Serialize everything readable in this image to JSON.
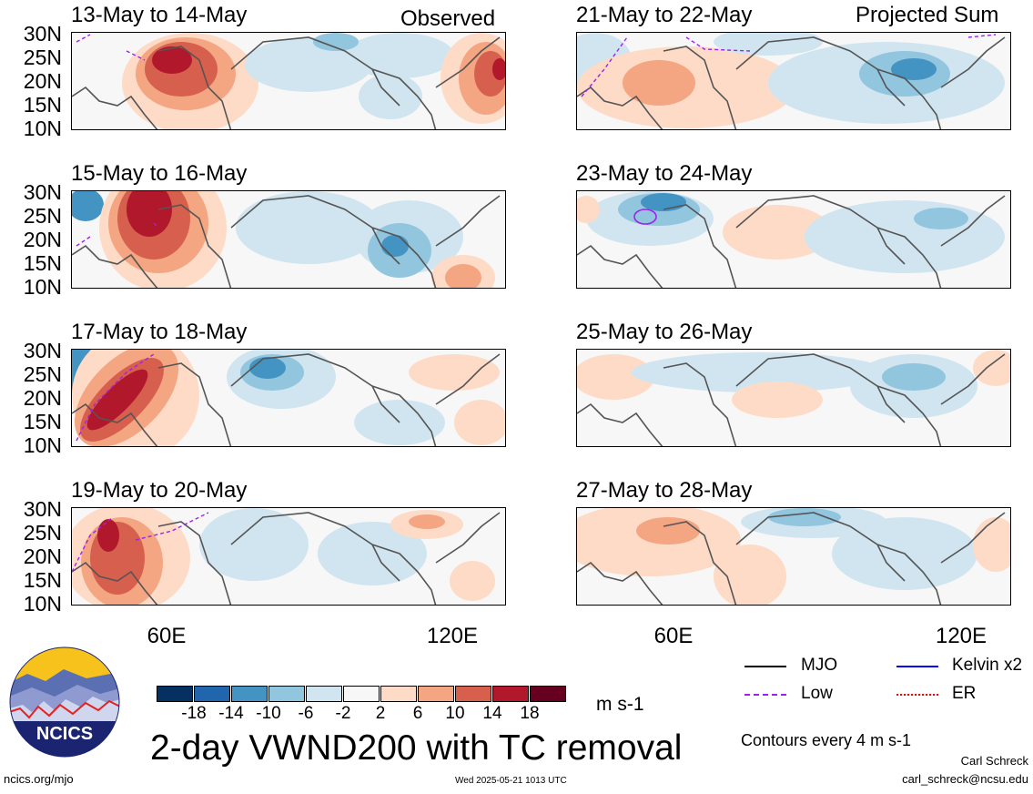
{
  "panels": {
    "left_header": "Observed",
    "right_header": "Projected Sum",
    "left": [
      {
        "title": "13-May to 14-May"
      },
      {
        "title": "15-May to 16-May"
      },
      {
        "title": "17-May to 18-May"
      },
      {
        "title": "19-May to 20-May"
      }
    ],
    "right": [
      {
        "title": "21-May to 22-May"
      },
      {
        "title": "23-May to 24-May"
      },
      {
        "title": "25-May to 26-May"
      },
      {
        "title": "27-May to 28-May"
      }
    ]
  },
  "axes": {
    "lat_labels": [
      "30N",
      "25N",
      "20N",
      "15N",
      "10N"
    ],
    "lon_labels": [
      "60E",
      "120E"
    ]
  },
  "colorbar": {
    "ticks": [
      "-18",
      "-14",
      "-10",
      "-6",
      "-2",
      "2",
      "6",
      "10",
      "14",
      "18"
    ],
    "colors": [
      "#053061",
      "#2166ac",
      "#4393c3",
      "#92c5de",
      "#d1e5f0",
      "#f7f7f7",
      "#fddbc7",
      "#f4a582",
      "#d6604d",
      "#b2182b",
      "#67001f"
    ],
    "units": "m s-1"
  },
  "legend": {
    "mjo": "MJO",
    "kelvin": "Kelvin x2",
    "low": "Low",
    "er": "ER",
    "colors": {
      "mjo": "#000000",
      "kelvin": "#0000ff",
      "low": "#a020f0",
      "er": "#ff0000"
    },
    "contour_note": "Contours every 4 m s-1"
  },
  "logo": {
    "text": "NCICS"
  },
  "title": "2-day VWND200 with TC removal",
  "footer": {
    "url": "ncics.org/mjo",
    "timestamp": "Wed 2025-05-21 1013 UTC",
    "author": "Carl Schreck",
    "email": "carl_schreck@ncsu.edu"
  }
}
